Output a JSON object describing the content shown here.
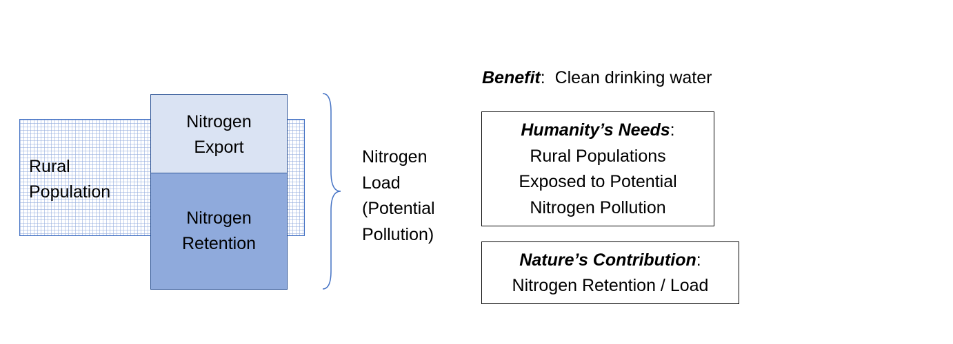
{
  "rural_population": {
    "lines": [
      "Rural",
      "Population"
    ]
  },
  "nitrogen_export": {
    "lines": [
      "Nitrogen",
      "Export"
    ]
  },
  "nitrogen_retention": {
    "lines": [
      "Nitrogen",
      "Retention"
    ]
  },
  "nitrogen_load": {
    "lines": [
      "Nitrogen",
      "Load",
      "(Potential",
      "Pollution)"
    ]
  },
  "benefit": {
    "label": "Benefit",
    "separator": ":  ",
    "value": "Clean drinking water"
  },
  "humanity_needs": {
    "title": "Humanity’s Needs",
    "title_suffix": ":",
    "lines": [
      "Rural Populations",
      "Exposed to Potential",
      "Nitrogen Pollution"
    ]
  },
  "nature_contribution": {
    "title": "Nature’s Contribution",
    "title_suffix": ":",
    "lines": [
      "Nitrogen Retention / Load"
    ]
  },
  "colors": {
    "export_fill": "#dae3f3",
    "retention_fill": "#8faadc",
    "grid_line": "#8faadc",
    "outline": "#4472c4"
  }
}
